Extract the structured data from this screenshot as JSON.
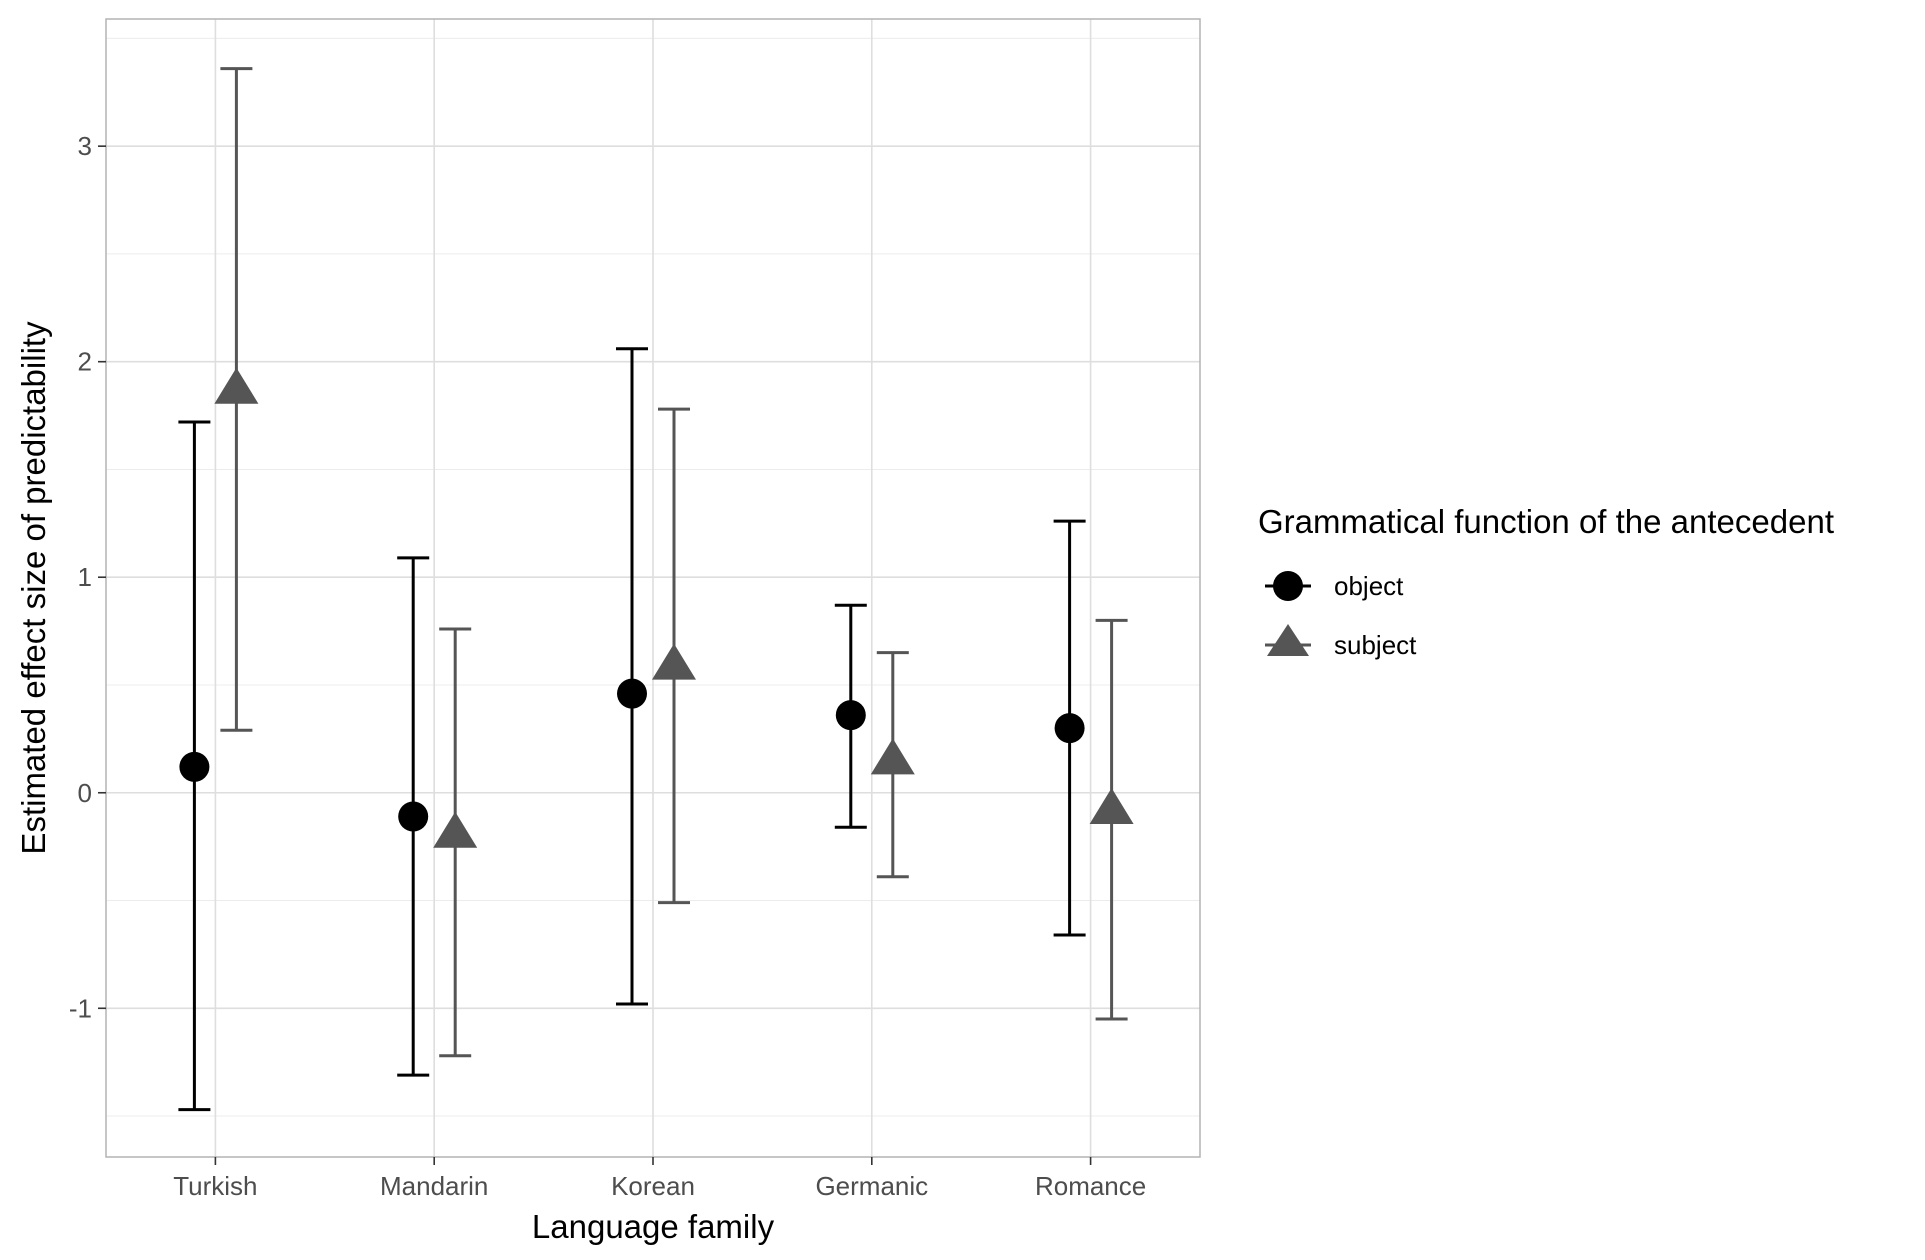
{
  "chart_data": {
    "type": "scatter",
    "subtype": "point-range with error bars",
    "title": "",
    "xlabel": "Language family",
    "ylabel": "Estimated effect size of predictability",
    "categories": [
      "Turkish",
      "Mandarin",
      "Korean",
      "Germanic",
      "Romance"
    ],
    "ylim": [
      -1.69,
      3.59
    ],
    "yticks": [
      "-1",
      "0",
      "1",
      "2",
      "3"
    ],
    "grid": true,
    "legend": {
      "title": "Grammatical function of the antecedent",
      "position": "right"
    },
    "series": [
      {
        "name": "object",
        "marker": "circle",
        "color": "#000000",
        "values": [
          0.12,
          -0.11,
          0.46,
          0.36,
          0.3
        ],
        "lower": [
          -1.47,
          -1.31,
          -0.98,
          -0.16,
          -0.66
        ],
        "upper": [
          1.72,
          1.09,
          2.06,
          0.87,
          1.26
        ]
      },
      {
        "name": "subject",
        "marker": "triangle",
        "color": "#555555",
        "values": [
          1.87,
          -0.19,
          0.59,
          0.15,
          -0.08
        ],
        "lower": [
          0.29,
          -1.22,
          -0.51,
          -0.39,
          -1.05
        ],
        "upper": [
          3.36,
          0.76,
          1.78,
          0.65,
          0.8
        ]
      }
    ]
  }
}
